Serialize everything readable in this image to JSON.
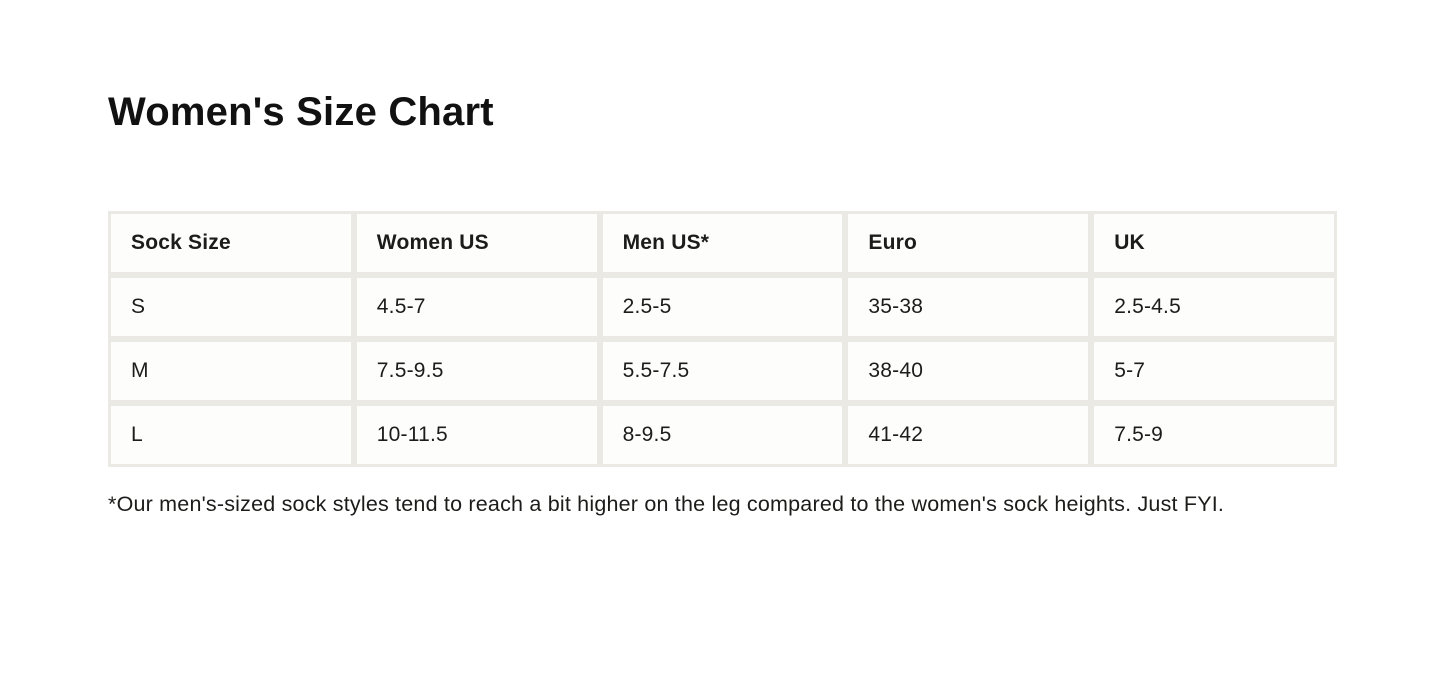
{
  "page": {
    "title": "Women's Size Chart",
    "footnote": "*Our men's-sized sock styles tend to reach a bit higher on the leg compared to the women's sock heights. Just FYI."
  },
  "size_chart": {
    "columns": [
      "Sock Size",
      "Women US",
      "Men US*",
      "Euro",
      "UK"
    ],
    "rows": [
      [
        "S",
        "4.5-7",
        "2.5-5",
        "35-38",
        "2.5-4.5"
      ],
      [
        "M",
        "7.5-9.5",
        "5.5-7.5",
        "38-40",
        "5-7"
      ],
      [
        "L",
        "10-11.5",
        "8-9.5",
        "41-42",
        "7.5-9"
      ]
    ]
  },
  "colors": {
    "text": "#1c1c1a",
    "table_border": "#eae9e3",
    "cell_background": "#fdfdfc",
    "page_background": "#ffffff"
  }
}
